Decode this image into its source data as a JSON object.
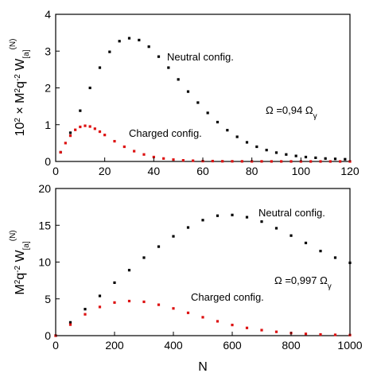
{
  "chart_data": [
    {
      "type": "scatter",
      "ylabel_parts": {
        "pre": "10",
        "sup1": "2",
        "mid": " × M",
        "sup2": "2",
        "mid2": "q",
        "sup3": "-2",
        "mid3": " W",
        "sub": "[a]",
        "sup4": "(N)"
      },
      "xlim": [
        0,
        120
      ],
      "ylim": [
        0,
        4
      ],
      "xticks": [
        0,
        20,
        40,
        60,
        80,
        100,
        120
      ],
      "yticks": [
        0,
        1,
        2,
        3,
        4
      ],
      "annotation_parts": {
        "pre": "Ω =0,94 Ω",
        "sub": "γ"
      },
      "series": [
        {
          "name": "Neutral config.",
          "color": "#000000",
          "x": [
            2,
            6,
            10,
            14,
            18,
            22,
            26,
            30,
            34,
            38,
            42,
            46,
            50,
            54,
            58,
            62,
            66,
            70,
            74,
            78,
            82,
            86,
            90,
            94,
            98,
            102,
            106,
            110,
            114,
            118
          ],
          "values": [
            0.25,
            0.78,
            1.38,
            2.0,
            2.55,
            2.98,
            3.27,
            3.35,
            3.3,
            3.12,
            2.85,
            2.55,
            2.23,
            1.9,
            1.6,
            1.32,
            1.07,
            0.85,
            0.67,
            0.52,
            0.4,
            0.31,
            0.24,
            0.19,
            0.15,
            0.12,
            0.1,
            0.08,
            0.07,
            0.06
          ]
        },
        {
          "name": "Charged config.",
          "color": "#dd1111",
          "x": [
            2,
            4,
            6,
            8,
            10,
            12,
            14,
            16,
            18,
            20,
            24,
            28,
            32,
            36,
            40,
            44,
            48,
            52,
            56,
            60,
            64,
            68,
            72,
            76,
            80,
            84,
            88,
            92,
            96,
            100,
            104,
            108,
            112,
            116,
            120
          ],
          "values": [
            0.25,
            0.5,
            0.7,
            0.86,
            0.94,
            0.97,
            0.95,
            0.89,
            0.81,
            0.72,
            0.55,
            0.4,
            0.28,
            0.19,
            0.12,
            0.08,
            0.05,
            0.03,
            0.02,
            0.01,
            0.01,
            0.005,
            0.004,
            0.003,
            0.002,
            0.002,
            0.001,
            0.001,
            0.001,
            0.001,
            0,
            0,
            0,
            0,
            0
          ]
        }
      ]
    },
    {
      "type": "scatter",
      "xlabel": "N",
      "ylabel_parts": {
        "pre": "M",
        "sup1": "2",
        "mid": "q",
        "sup2": "-2",
        "mid2": " W",
        "sub": "[a]",
        "sup3": "(N)"
      },
      "xlim": [
        0,
        1000
      ],
      "ylim": [
        0,
        20
      ],
      "xticks": [
        0,
        200,
        400,
        600,
        800,
        1000
      ],
      "yticks": [
        0,
        5,
        10,
        15,
        20
      ],
      "annotation_parts": {
        "pre": "Ω =0,997 Ω",
        "sub": "γ"
      },
      "series": [
        {
          "name": "Neutral config.",
          "color": "#000000",
          "x": [
            0,
            50,
            100,
            150,
            200,
            250,
            300,
            350,
            400,
            450,
            500,
            550,
            600,
            650,
            700,
            750,
            800,
            850,
            900,
            950,
            1000
          ],
          "values": [
            0,
            1.8,
            3.6,
            5.4,
            7.2,
            8.9,
            10.6,
            12.1,
            13.5,
            14.7,
            15.7,
            16.3,
            16.4,
            16.1,
            15.5,
            14.6,
            13.6,
            12.6,
            11.5,
            10.6,
            9.9
          ]
        },
        {
          "name": "Charged config.",
          "color": "#dd1111",
          "x": [
            0,
            50,
            100,
            150,
            200,
            250,
            300,
            350,
            400,
            450,
            500,
            550,
            600,
            650,
            700,
            750,
            800,
            850,
            900,
            950,
            1000
          ],
          "values": [
            0,
            1.5,
            2.9,
            3.9,
            4.5,
            4.7,
            4.6,
            4.2,
            3.7,
            3.1,
            2.5,
            1.95,
            1.45,
            1.05,
            0.75,
            0.52,
            0.35,
            0.24,
            0.16,
            0.11,
            0.08
          ]
        }
      ]
    }
  ]
}
